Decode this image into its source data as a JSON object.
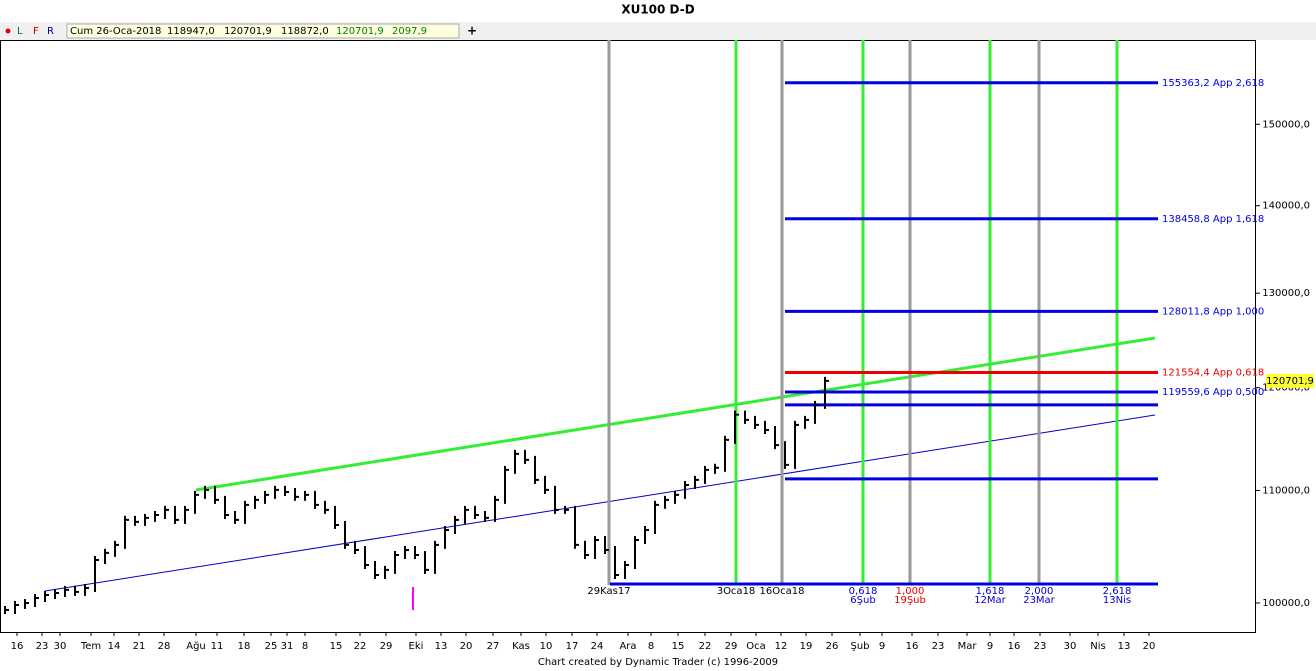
{
  "chart_data": {
    "type": "price_bars",
    "title": "XU100 D-D",
    "toolbar": {
      "flags": [
        "L",
        "F",
        "R"
      ],
      "date": "Cum 26-Oca-2018",
      "open": "118947,0",
      "high": "120701,9",
      "low": "118872,0",
      "close": "120701,9",
      "change": "2097,9",
      "add": "+"
    },
    "footer": "Chart created by Dynamic Trader  (c) 1996-2009",
    "log_scale": true,
    "ylim": [
      97570,
      161100
    ],
    "yticks": [
      {
        "value": 100000,
        "label": "100000,0"
      },
      {
        "value": 110000,
        "label": "110000,0"
      },
      {
        "value": 120000,
        "label": "120000,0"
      },
      {
        "value": 130000,
        "label": "130000,0"
      },
      {
        "value": 140000,
        "label": "140000,0"
      },
      {
        "value": 150000,
        "label": "150000,0"
      }
    ],
    "x_labels": [
      "16",
      "23",
      "30",
      "Tem",
      "14",
      "21",
      "28",
      "Ağu",
      "11",
      "18",
      "25",
      "31",
      "8",
      "15",
      "22",
      "29",
      "Eki",
      "13",
      "20",
      "27",
      "Kas",
      "10",
      "17",
      "24",
      "Ara",
      "8",
      "15",
      "22",
      "29",
      "Oca",
      "12",
      "19",
      "26",
      "Şub",
      "9",
      "16",
      "23",
      "Mar",
      "9",
      "16",
      "23",
      "30",
      "Nis",
      "13",
      "20"
    ],
    "color": "#000000",
    "values": [
      99410,
      99830,
      100000,
      100425,
      100680,
      100850,
      101110,
      100940,
      101280,
      103710,
      104330,
      105040,
      107290,
      107110,
      107470,
      107740,
      108200,
      107290,
      108200,
      109590,
      110050,
      109130,
      107740,
      107290,
      108660,
      109130,
      109590,
      110050,
      109860,
      109400,
      109590,
      108660,
      108200,
      106830,
      105040,
      104590,
      103270,
      102400,
      102840,
      104150,
      104590,
      104150,
      102840,
      105040,
      106380,
      107290,
      108200,
      107740,
      107470,
      109130,
      111930,
      113460,
      112880,
      110990,
      110050,
      108200,
      108200,
      105040,
      104150,
      105480,
      104590,
      102400,
      103270,
      105480,
      106380,
      108660,
      109130,
      109590,
      110510,
      110990,
      111930,
      112140,
      114810,
      117290,
      116780,
      116280,
      115780,
      114310,
      112410,
      116280,
      116780,
      118270,
      120701.9
    ],
    "last": {
      "value": 120701.9,
      "label": "120701,9"
    },
    "levels": [
      {
        "value": 155363.2,
        "label": "155363,2 App 2,618",
        "color": "#0000dd"
      },
      {
        "value": 138458.8,
        "label": "138458,8 App 1,618",
        "color": "#0000dd"
      },
      {
        "value": 128011.8,
        "label": "128011,8 App 1,000",
        "color": "#0000dd"
      },
      {
        "value": 121554.4,
        "label": "121554,4 App 0,618",
        "color": "#ee0000"
      },
      {
        "value": 119559.6,
        "label": "119559,6 App 0,500",
        "color": "#0000dd"
      },
      {
        "value": 118270,
        "color": "#0000dd"
      },
      {
        "value": 111080,
        "color": "#0000dd"
      },
      {
        "value": 101620,
        "color": "#0000dd"
      }
    ],
    "time_markers": [
      {
        "label": "29Kas17",
        "color": "#999999"
      },
      {
        "label": "3Oca18",
        "color": "#33ee33"
      },
      {
        "label": "16Oca18",
        "color": "#999999"
      },
      {
        "ratio": "0,618",
        "label": "6Şub",
        "color": "#33ee33",
        "text_color": "#0000cc"
      },
      {
        "ratio": "1,000",
        "label": "19Şub",
        "color": "#999999",
        "text_color": "#ee0000"
      },
      {
        "ratio": "1,618",
        "label": "12Mar",
        "color": "#33ee33",
        "text_color": "#0000cc"
      },
      {
        "ratio": "2,000",
        "label": "23Mar",
        "color": "#999999",
        "text_color": "#0000cc"
      },
      {
        "ratio": "2,618",
        "label": "13Nis",
        "color": "#33ee33",
        "text_color": "#0000cc"
      }
    ]
  }
}
